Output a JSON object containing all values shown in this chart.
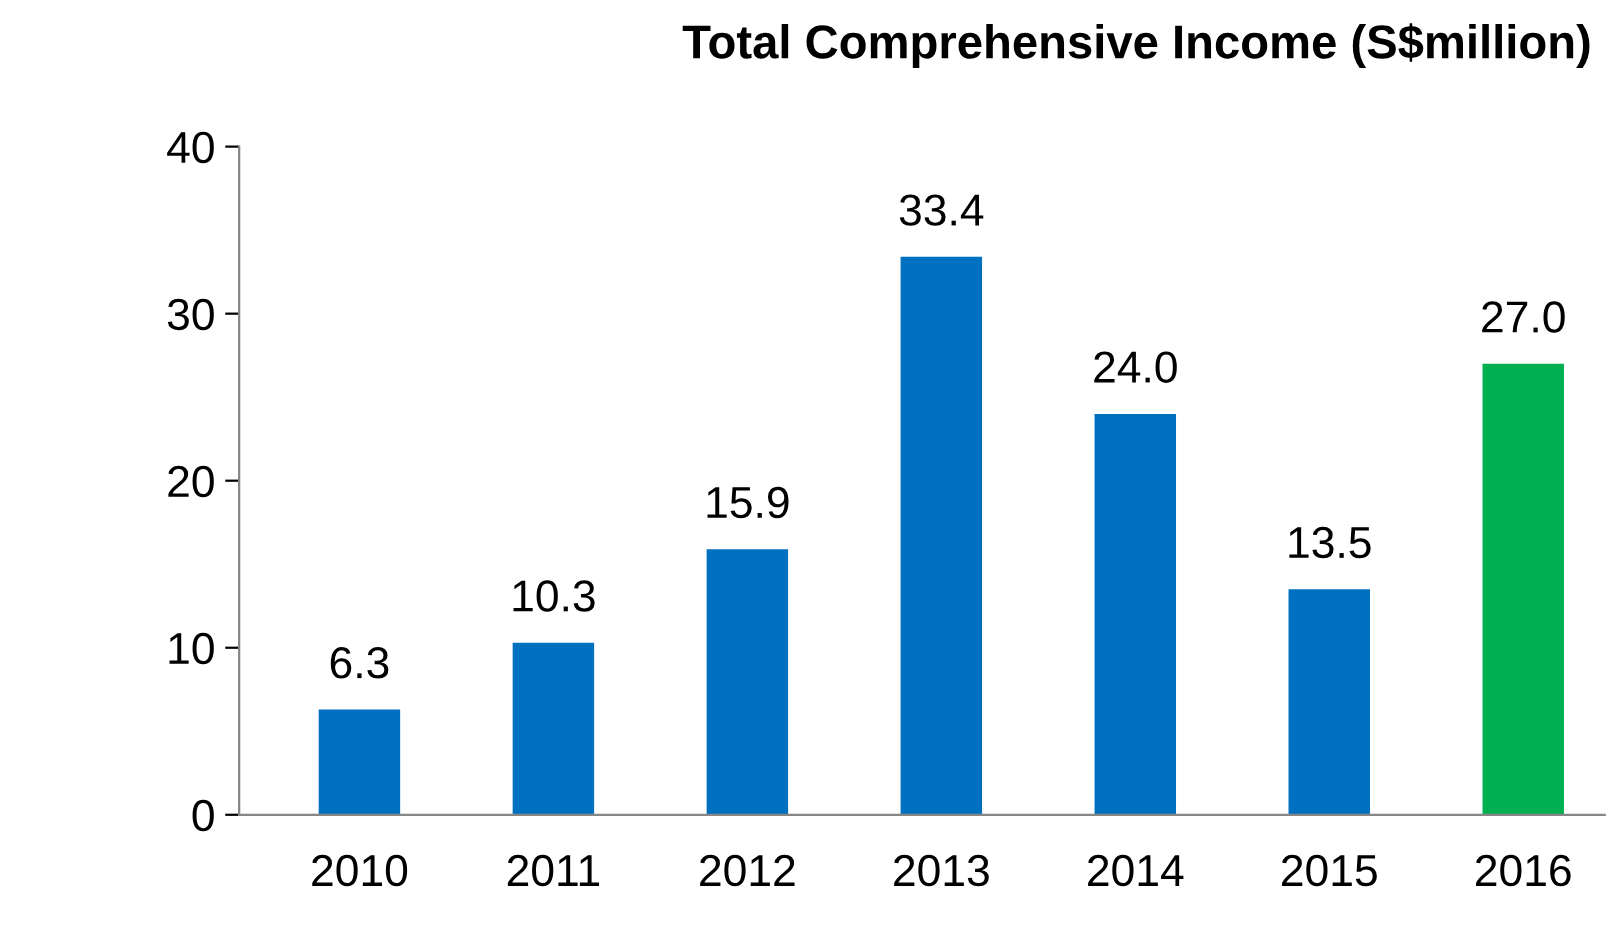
{
  "chart_data": {
    "type": "bar",
    "title": "Total Comprehensive Income (S$million)",
    "categories": [
      "2010",
      "2011",
      "2012",
      "2013",
      "2014",
      "2015",
      "2016"
    ],
    "values": [
      6.3,
      10.3,
      15.9,
      33.4,
      24.0,
      13.5,
      27.0
    ],
    "value_labels": [
      "6.3",
      "10.3",
      "15.9",
      "33.4",
      "24.0",
      "13.5",
      "27.0"
    ],
    "colors": [
      "#0070c0",
      "#0070c0",
      "#0070c0",
      "#0070c0",
      "#0070c0",
      "#0070c0",
      "#00b050"
    ],
    "ylim": [
      0,
      40
    ],
    "yticks": [
      0,
      10,
      20,
      30,
      40
    ],
    "grid": false,
    "legend": false
  }
}
